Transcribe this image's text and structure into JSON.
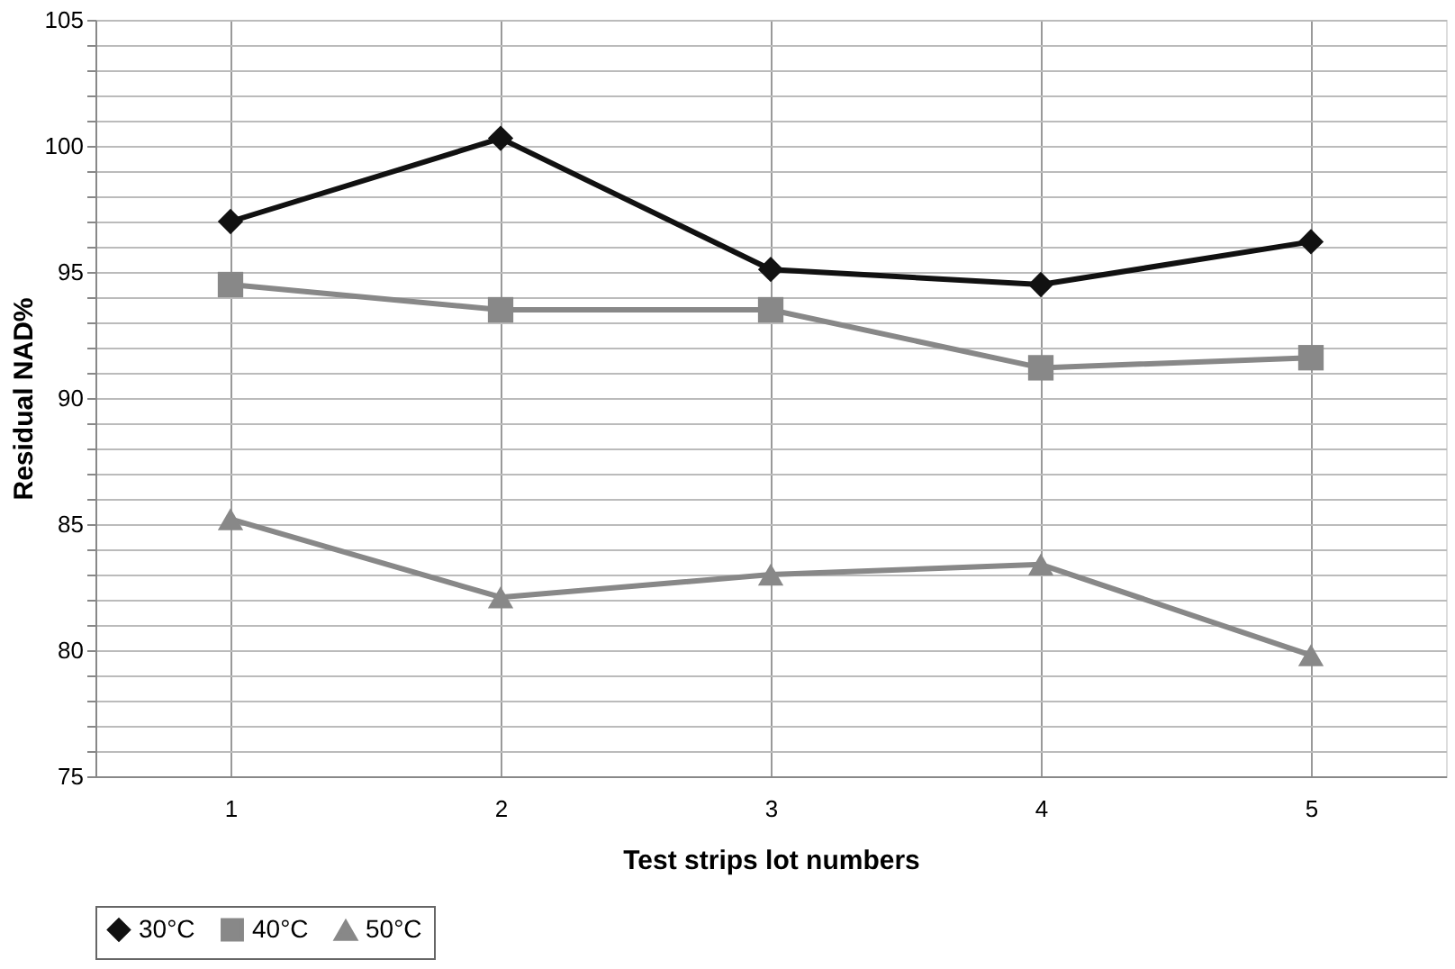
{
  "chart_data": {
    "type": "line",
    "xlabel": "Test strips lot numbers",
    "ylabel": "Residual NAD%",
    "categories": [
      "1",
      "2",
      "3",
      "4",
      "5"
    ],
    "series": [
      {
        "name": "30°C",
        "color": "#111111",
        "marker": "diamond",
        "values": [
          97.0,
          100.3,
          95.1,
          94.5,
          96.2
        ]
      },
      {
        "name": "40°C",
        "color": "#888888",
        "marker": "square",
        "values": [
          94.5,
          93.5,
          93.5,
          91.2,
          91.6
        ]
      },
      {
        "name": "50°C",
        "color": "#888888",
        "marker": "triangle",
        "values": [
          85.2,
          82.1,
          83.0,
          83.4,
          79.8
        ]
      }
    ],
    "ylim": [
      75,
      105
    ],
    "yticks": [
      75,
      {
        "value": 76,
        "label": null
      },
      {
        "value": 77,
        "label": null
      },
      {
        "value": 78,
        "label": null
      },
      {
        "value": 79,
        "label": null
      },
      80,
      {
        "value": 81,
        "label": null
      },
      {
        "value": 82,
        "label": null
      },
      {
        "value": 83,
        "label": null
      },
      {
        "value": 84,
        "label": null
      },
      85,
      {
        "value": 86,
        "label": null
      },
      {
        "value": 87,
        "label": null
      },
      {
        "value": 88,
        "label": null
      },
      {
        "value": 89,
        "label": null
      },
      90,
      {
        "value": 91,
        "label": null
      },
      {
        "value": 92,
        "label": null
      },
      {
        "value": 93,
        "label": null
      },
      {
        "value": 94,
        "label": null
      },
      95,
      {
        "value": 96,
        "label": null
      },
      {
        "value": 97,
        "label": null
      },
      {
        "value": 98,
        "label": null
      },
      {
        "value": 99,
        "label": null
      },
      100,
      {
        "value": 101,
        "label": null
      },
      {
        "value": 102,
        "label": null
      },
      {
        "value": 103,
        "label": null
      },
      {
        "value": 104,
        "label": null
      },
      105
    ],
    "grid": true,
    "legend": "bottom",
    "line_style": "solid"
  }
}
